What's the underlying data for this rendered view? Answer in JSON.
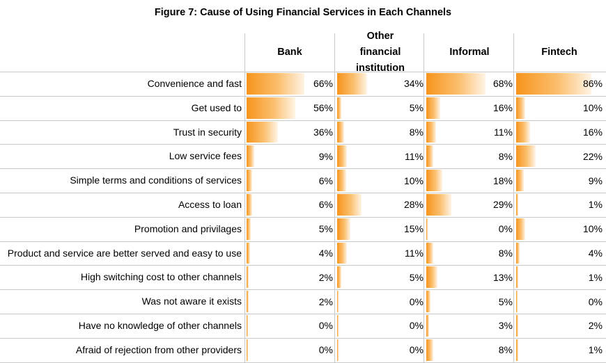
{
  "chart_data": {
    "type": "table",
    "title": "Figure 7: Cause of Using Financial Services in Each Channels",
    "columns": [
      "Bank",
      "Other financial institution",
      "Informal",
      "Fintech"
    ],
    "rows": [
      {
        "label": "Convenience and fast",
        "values": [
          66,
          34,
          68,
          86
        ]
      },
      {
        "label": "Get used to",
        "values": [
          56,
          5,
          16,
          10
        ]
      },
      {
        "label": "Trust in security",
        "values": [
          36,
          8,
          11,
          16
        ]
      },
      {
        "label": "Low service fees",
        "values": [
          9,
          11,
          8,
          22
        ]
      },
      {
        "label": "Simple terms and conditions of services",
        "values": [
          6,
          10,
          18,
          9
        ]
      },
      {
        "label": "Access to loan",
        "values": [
          6,
          28,
          29,
          1
        ]
      },
      {
        "label": "Promotion and privilages",
        "values": [
          5,
          15,
          0,
          10
        ]
      },
      {
        "label": "Product and service are better served and easy to use",
        "values": [
          4,
          11,
          8,
          4
        ]
      },
      {
        "label": "High switching cost to other channels",
        "values": [
          2,
          5,
          13,
          1
        ]
      },
      {
        "label": "Was not aware it exists",
        "values": [
          2,
          0,
          5,
          0
        ]
      },
      {
        "label": "Have no knowledge of other channels",
        "values": [
          0,
          0,
          3,
          2
        ]
      },
      {
        "label": "Afraid of rejection from other providers",
        "values": [
          0,
          0,
          8,
          1
        ]
      }
    ],
    "value_suffix": "%",
    "bar_color": "#f7941d"
  }
}
